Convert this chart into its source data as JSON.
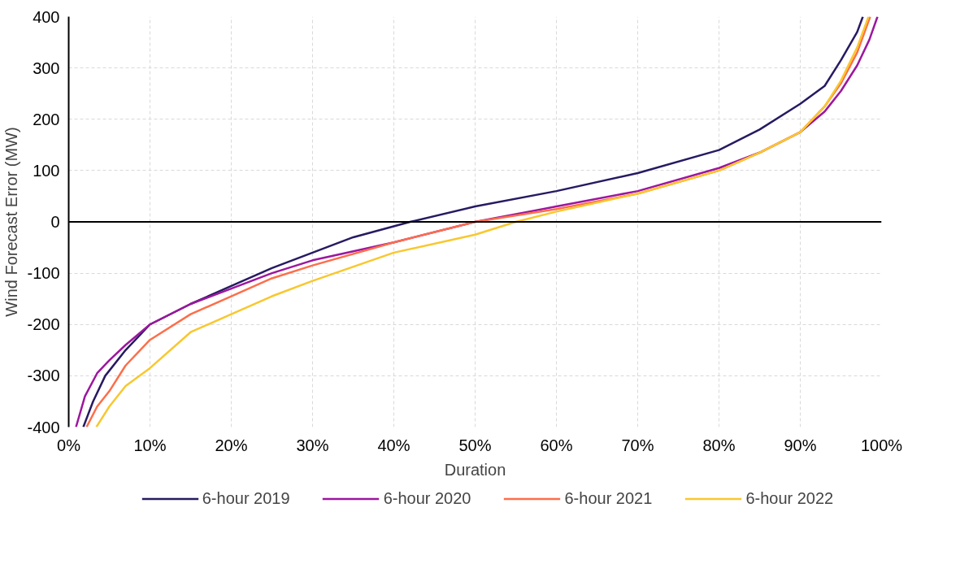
{
  "chart_data": {
    "type": "line",
    "xlabel": "Duration",
    "ylabel": "Wind Forecast Error (MW)",
    "xlim": [
      0,
      100
    ],
    "ylim": [
      -400,
      400
    ],
    "xticks": [
      {
        "value": 0,
        "label": "0%"
      },
      {
        "value": 10,
        "label": "10%"
      },
      {
        "value": 20,
        "label": "20%"
      },
      {
        "value": 30,
        "label": "30%"
      },
      {
        "value": 40,
        "label": "40%"
      },
      {
        "value": 50,
        "label": "50%"
      },
      {
        "value": 60,
        "label": "60%"
      },
      {
        "value": 70,
        "label": "70%"
      },
      {
        "value": 80,
        "label": "80%"
      },
      {
        "value": 90,
        "label": "90%"
      },
      {
        "value": 100,
        "label": "100%"
      }
    ],
    "yticks": [
      -400,
      -300,
      -200,
      -100,
      0,
      100,
      200,
      300,
      400
    ],
    "grid": true,
    "legend": "bottom",
    "line_style": "solid",
    "marker": "none",
    "ref_lines": [
      {
        "axis": "y",
        "value": 0,
        "label": null,
        "color": "#000000"
      }
    ],
    "series": [
      {
        "name": "6-hour 2019",
        "color": "#271a62",
        "x": [
          1.8,
          3,
          4.5,
          7,
          10,
          15,
          20,
          25,
          30,
          35,
          42,
          50,
          60,
          70,
          80,
          85,
          90,
          93,
          95,
          97,
          97.7
        ],
        "values": [
          -400,
          -350,
          -300,
          -250,
          -200,
          -160,
          -125,
          -90,
          -60,
          -30,
          0,
          30,
          60,
          95,
          140,
          180,
          230,
          265,
          315,
          370,
          400
        ]
      },
      {
        "name": "6-hour 2020",
        "color": "#9c179e",
        "x": [
          0.9,
          2,
          3.5,
          5,
          7,
          10,
          15,
          20,
          25,
          30,
          40,
          50,
          60,
          70,
          80,
          85,
          90,
          93,
          95,
          97,
          98.5,
          99.5
        ],
        "values": [
          -400,
          -340,
          -295,
          -270,
          -240,
          -200,
          -160,
          -130,
          -100,
          -75,
          -40,
          0,
          30,
          60,
          105,
          135,
          175,
          215,
          255,
          305,
          355,
          400
        ]
      },
      {
        "name": "6-hour 2021",
        "color": "#fd6e4a",
        "x": [
          2.2,
          3.5,
          5,
          7,
          10,
          15,
          20,
          25,
          30,
          40,
          50,
          60,
          70,
          80,
          85,
          90,
          93,
          95,
          97,
          98.6
        ],
        "values": [
          -400,
          -360,
          -330,
          -280,
          -230,
          -180,
          -145,
          -110,
          -85,
          -40,
          0,
          25,
          55,
          100,
          135,
          175,
          225,
          270,
          330,
          400
        ]
      },
      {
        "name": "6-hour 2022",
        "color": "#f9c72e",
        "x": [
          3.4,
          5,
          7,
          10,
          15,
          20,
          25,
          30,
          40,
          50,
          55,
          60,
          70,
          80,
          85,
          90,
          93,
          95,
          97,
          98.4
        ],
        "values": [
          -400,
          -360,
          -320,
          -285,
          -215,
          -180,
          -145,
          -115,
          -60,
          -25,
          0,
          20,
          55,
          100,
          135,
          175,
          225,
          275,
          340,
          400
        ]
      }
    ]
  }
}
